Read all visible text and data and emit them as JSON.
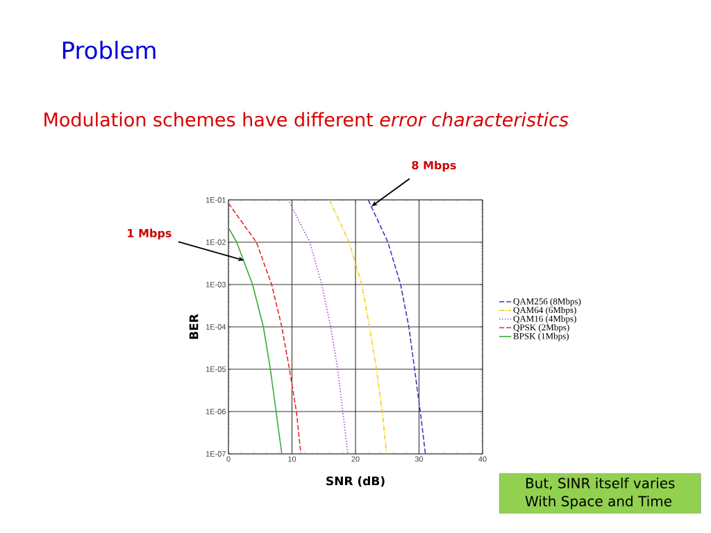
{
  "chart_data": {
    "type": "line",
    "title": "Problem",
    "subtitle": "Modulation schemes have different *error characteristics*",
    "xlabel": "SNR (dB)",
    "ylabel": "BER",
    "log": "y",
    "grid": true,
    "legend": "right",
    "xlim": [
      0,
      40
    ],
    "ylim": [
      1e-07,
      0.1
    ],
    "xticks": [
      0,
      10,
      20,
      30,
      40
    ],
    "yticks": [
      {
        "value": 1e-07,
        "label": "1E-07"
      },
      {
        "value": 1e-06,
        "label": "1E-06"
      },
      {
        "value": 1e-05,
        "label": "1E-05"
      },
      {
        "value": 0.0001,
        "label": "1E-04"
      },
      {
        "value": 0.001,
        "label": "1E-03"
      },
      {
        "value": 0.01,
        "label": "1E-02"
      },
      {
        "value": 0.1,
        "label": "1E-01"
      }
    ],
    "series": [
      {
        "name": "QAM256 (8Mbps)",
        "color": "#3a3ab8",
        "line_style": "dashed",
        "x": [
          22.0,
          25.1,
          27.1,
          28.4,
          29.3,
          30.2,
          31.0
        ],
        "values": [
          0.1,
          0.01,
          0.001,
          0.0001,
          1e-05,
          1e-06,
          1e-07
        ]
      },
      {
        "name": "QAM64 (6Mbps)",
        "color": "#f2d00c",
        "line_style": "dashdot",
        "x": [
          15.9,
          19.0,
          21.0,
          22.2,
          23.3,
          24.2,
          24.9
        ],
        "values": [
          0.1,
          0.01,
          0.001,
          0.0001,
          1e-05,
          1e-06,
          1e-07
        ]
      },
      {
        "name": "QAM16 (4Mbps)",
        "color": "#a03cd0",
        "line_style": "dotted",
        "x": [
          9.6,
          12.8,
          14.7,
          16.1,
          17.2,
          18.0,
          18.8
        ],
        "values": [
          0.088,
          0.01,
          0.001,
          0.0001,
          1e-05,
          1e-06,
          1e-07
        ]
      },
      {
        "name": "QPSK (2Mbps)",
        "color": "#e8262a",
        "line_style": "dashed",
        "x": [
          0,
          4.4,
          6.8,
          8.4,
          9.6,
          10.7,
          11.4
        ],
        "values": [
          0.083,
          0.01,
          0.001,
          0.0001,
          1e-05,
          1e-06,
          1e-07
        ]
      },
      {
        "name": "BPSK (1Mbps)",
        "color": "#3aaa35",
        "line_style": "solid",
        "x": [
          0,
          1.3,
          3.8,
          5.5,
          6.6,
          7.5,
          8.4
        ],
        "values": [
          0.022,
          0.01,
          0.001,
          0.0001,
          1e-05,
          1e-06,
          1e-07
        ]
      }
    ],
    "annotations": [
      {
        "text": "8 Mbps",
        "x": 22.5,
        "y": 0.07
      },
      {
        "text": "1 Mbps",
        "x": 2.5,
        "y": 0.0037
      },
      "But, SINR itself varies",
      "With Space and Time"
    ]
  }
}
